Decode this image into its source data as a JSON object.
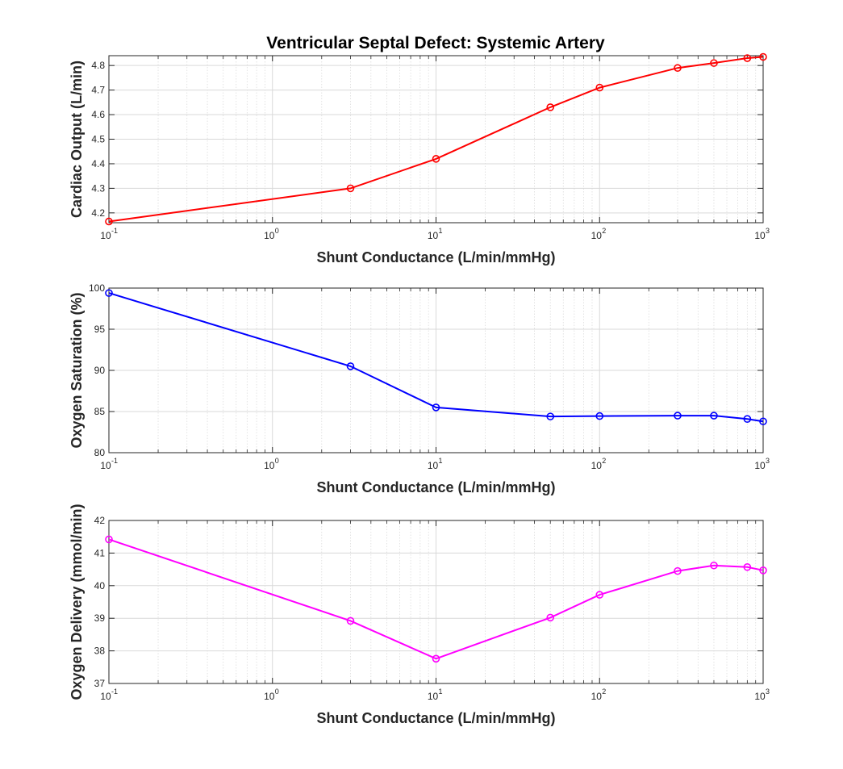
{
  "chart_data": [
    {
      "type": "line",
      "title": "Ventricular Septal Defect: Systemic Artery",
      "xlabel": "Shunt Conductance (L/min/mmHg)",
      "ylabel": "Cardiac Output (L/min)",
      "xscale": "log",
      "xlim": [
        0.1,
        1000
      ],
      "ylim": [
        4.16,
        4.84
      ],
      "yticks": [
        4.2,
        4.3,
        4.4,
        4.5,
        4.6,
        4.7,
        4.8
      ],
      "ytick_labels": [
        "4.2",
        "4.3",
        "4.4",
        "4.5",
        "4.6",
        "4.7",
        "4.8"
      ],
      "grid": true,
      "color": "#ff0000",
      "marker": "circle",
      "x": [
        0.1,
        3,
        10,
        50,
        100,
        300,
        500,
        800,
        1000
      ],
      "y": [
        4.165,
        4.3,
        4.42,
        4.63,
        4.71,
        4.79,
        4.81,
        4.83,
        4.835
      ]
    },
    {
      "type": "line",
      "title": "",
      "xlabel": "Shunt Conductance (L/min/mmHg)",
      "ylabel": "Oxygen Saturation (%)",
      "xscale": "log",
      "xlim": [
        0.1,
        1000
      ],
      "ylim": [
        80,
        100
      ],
      "yticks": [
        80,
        85,
        90,
        95,
        100
      ],
      "ytick_labels": [
        "80",
        "85",
        "90",
        "95",
        "100"
      ],
      "grid": true,
      "color": "#0000ff",
      "marker": "circle",
      "x": [
        0.1,
        3,
        10,
        50,
        100,
        300,
        500,
        800,
        1000
      ],
      "y": [
        99.4,
        90.5,
        85.5,
        84.4,
        84.45,
        84.5,
        84.5,
        84.1,
        83.8
      ]
    },
    {
      "type": "line",
      "title": "",
      "xlabel": "Shunt Conductance (L/min/mmHg)",
      "ylabel": "Oxygen Delivery (mmol/min)",
      "xscale": "log",
      "xlim": [
        0.1,
        1000
      ],
      "ylim": [
        37,
        42
      ],
      "yticks": [
        37,
        38,
        39,
        40,
        41,
        42
      ],
      "ytick_labels": [
        "37",
        "38",
        "39",
        "40",
        "41",
        "42"
      ],
      "grid": true,
      "color": "#ff00ff",
      "marker": "circle",
      "x": [
        0.1,
        3,
        10,
        50,
        100,
        300,
        500,
        800,
        1000
      ],
      "y": [
        41.42,
        38.92,
        37.76,
        39.02,
        39.72,
        40.45,
        40.62,
        40.57,
        40.47
      ]
    }
  ],
  "xtick_labels": [
    {
      "base": "10",
      "exp": "-1"
    },
    {
      "base": "10",
      "exp": "0"
    },
    {
      "base": "10",
      "exp": "1"
    },
    {
      "base": "10",
      "exp": "2"
    },
    {
      "base": "10",
      "exp": "3"
    }
  ]
}
